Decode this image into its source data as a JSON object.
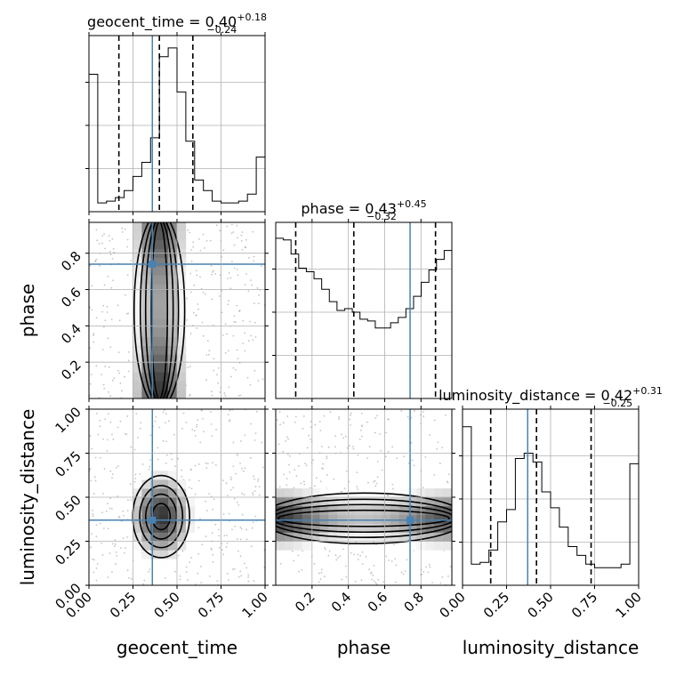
{
  "chart_data": {
    "type": "corner",
    "parameters": [
      "geocent_time",
      "phase",
      "luminosity_distance"
    ],
    "axis_labels": {
      "geocent_time": "geocent_time",
      "phase": "phase",
      "luminosity_distance": "luminosity_distance"
    },
    "ranges": {
      "geocent_time": [
        0,
        1
      ],
      "phase": [
        0.0,
        0.97
      ],
      "luminosity_distance": [
        0,
        1
      ]
    },
    "ticks": {
      "geocent_time": [
        "0.00",
        "0.25",
        "0.50",
        "0.75",
        "1.00"
      ],
      "phase": [
        "0.2",
        "0.4",
        "0.6",
        "0.8"
      ],
      "luminosity_distance": [
        "0.00",
        "0.25",
        "0.50",
        "0.75",
        "1.00"
      ]
    },
    "summaries": {
      "geocent_time": {
        "median": "0.40",
        "plus": "+0.18",
        "minus": "−0.24",
        "q16": 0.17,
        "q50": 0.4,
        "q84": 0.59
      },
      "phase": {
        "median": "0.43",
        "plus": "+0.45",
        "minus": "−0.32",
        "q16": 0.11,
        "q50": 0.43,
        "q84": 0.88
      },
      "luminosity_distance": {
        "median": "0.42",
        "plus": "+0.31",
        "minus": "−0.25",
        "q16": 0.16,
        "q50": 0.42,
        "q84": 0.73
      }
    },
    "truths": {
      "geocent_time": 0.36,
      "phase": 0.74,
      "luminosity_distance": 0.37
    },
    "histograms": {
      "geocent_time": [
        0.78,
        0.05,
        0.06,
        0.08,
        0.12,
        0.2,
        0.28,
        0.42,
        0.88,
        0.93,
        0.68,
        0.4,
        0.18,
        0.12,
        0.06,
        0.05,
        0.05,
        0.06,
        0.1,
        0.31
      ],
      "phase": [
        0.91,
        0.9,
        0.82,
        0.74,
        0.72,
        0.68,
        0.62,
        0.55,
        0.5,
        0.51,
        0.49,
        0.45,
        0.44,
        0.4,
        0.4,
        0.43,
        0.46,
        0.51,
        0.58,
        0.66,
        0.73,
        0.79,
        0.84
      ],
      "luminosity_distance": [
        0.9,
        0.12,
        0.13,
        0.2,
        0.36,
        0.43,
        0.72,
        0.75,
        0.7,
        0.53,
        0.44,
        0.33,
        0.22,
        0.17,
        0.12,
        0.1,
        0.1,
        0.1,
        0.12,
        0.69
      ]
    },
    "grid": true
  }
}
